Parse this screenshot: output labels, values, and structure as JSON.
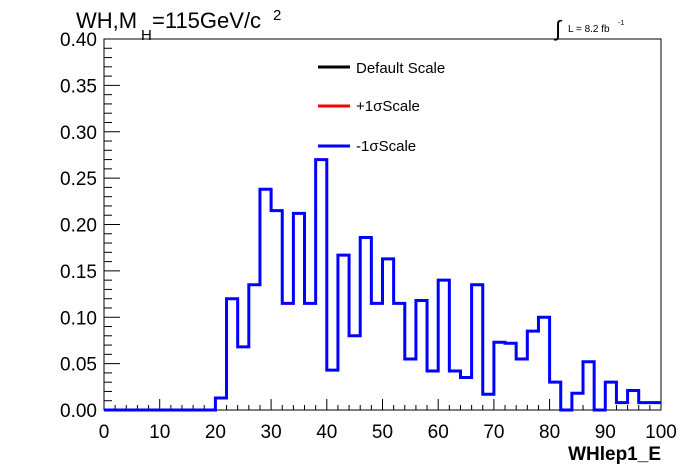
{
  "chart_data": {
    "type": "step",
    "title_main": "WH,M",
    "title_sub": "H",
    "title_rest": "=115GeV/c",
    "title_sup": "2",
    "lumi_text": "L = 8.2 fb",
    "lumi_sup": "-1",
    "lumi_symbol": "∫",
    "xlabel": "WHlep1_E",
    "ylabel": "",
    "xlim": [
      0,
      100
    ],
    "ylim": [
      0,
      0.4
    ],
    "xticks": [
      "0",
      "10",
      "20",
      "30",
      "40",
      "50",
      "60",
      "70",
      "80",
      "90",
      "100"
    ],
    "yticks": [
      "0.00",
      "0.05",
      "0.10",
      "0.15",
      "0.20",
      "0.25",
      "0.30",
      "0.35",
      "0.40"
    ],
    "bin_width": 2,
    "bin_edges_start": 0,
    "series": [
      {
        "name": "Default Scale",
        "color": "#000000"
      },
      {
        "name": "+1σScale",
        "color": "#ff0000"
      },
      {
        "name": "-1σScale",
        "color": "#0000ff",
        "values": [
          0,
          0,
          0,
          0,
          0,
          0,
          0,
          0,
          0,
          0,
          0.013,
          0.12,
          0.068,
          0.135,
          0.238,
          0.215,
          0.115,
          0.212,
          0.115,
          0.27,
          0.043,
          0.167,
          0.08,
          0.186,
          0.115,
          0.163,
          0.115,
          0.055,
          0.118,
          0.042,
          0.14,
          0.042,
          0.035,
          0.135,
          0.017,
          0.073,
          0.072,
          0.055,
          0.085,
          0.1,
          0.03,
          0,
          0.018,
          0.052,
          0,
          0.03,
          0.008,
          0.021,
          0.008,
          0.008
        ]
      }
    ]
  }
}
